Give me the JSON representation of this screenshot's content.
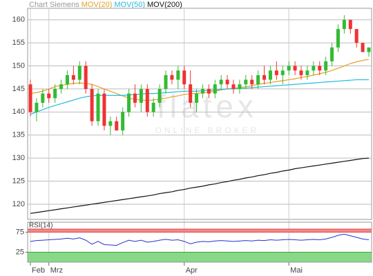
{
  "chart_data": [
    {
      "type": "candlestick",
      "title": "Chart Siemens",
      "categories": [
        "Feb",
        null,
        null,
        "Mrz",
        null,
        null,
        null,
        null,
        null,
        null,
        null,
        null,
        null,
        null,
        null,
        null,
        null,
        null,
        null,
        null,
        null,
        null,
        null,
        null,
        null,
        "Apr",
        null,
        null,
        null,
        null,
        null,
        null,
        null,
        null,
        null,
        null,
        null,
        null,
        null,
        null,
        null,
        null,
        "Mai",
        null,
        null,
        null,
        null,
        null,
        null,
        null,
        null,
        null,
        null,
        null,
        null,
        null
      ],
      "open": [
        146,
        140,
        142,
        144,
        143,
        145,
        146,
        148,
        147,
        150,
        145,
        138,
        144,
        137,
        138,
        136,
        140,
        144,
        142,
        145,
        140,
        142,
        145,
        148,
        147,
        149,
        146,
        142,
        144,
        145,
        144,
        146,
        147,
        146,
        145,
        146,
        147,
        146,
        148,
        147,
        149,
        148,
        149,
        150,
        149,
        148,
        149,
        150,
        149,
        151,
        154,
        158,
        160,
        158,
        155,
        153
      ],
      "high": [
        147,
        143,
        145,
        145,
        146,
        147,
        149,
        150,
        151,
        151,
        146,
        145,
        145,
        139,
        139,
        141,
        145,
        146,
        146,
        146,
        143,
        146,
        149,
        149,
        150,
        150,
        149,
        145,
        146,
        146,
        147,
        148,
        148,
        147,
        147,
        148,
        148,
        149,
        150,
        150,
        151,
        150,
        151,
        151,
        150,
        150,
        151,
        151,
        152,
        155,
        159,
        161,
        160,
        158,
        155,
        154
      ],
      "low": [
        139,
        138,
        141,
        142,
        142,
        144,
        145,
        146,
        146,
        144,
        137,
        137,
        136,
        135,
        136,
        135,
        139,
        141,
        140,
        139,
        139,
        141,
        144,
        146,
        145,
        145,
        141,
        140,
        143,
        143,
        143,
        145,
        145,
        144,
        144,
        145,
        145,
        145,
        146,
        146,
        147,
        146,
        148,
        148,
        147,
        147,
        148,
        148,
        148,
        150,
        153,
        157,
        157,
        154,
        153,
        152
      ],
      "close": [
        140,
        142,
        144,
        143,
        145,
        146,
        148,
        147,
        150,
        145,
        138,
        144,
        137,
        138,
        136,
        140,
        144,
        142,
        145,
        140,
        142,
        145,
        148,
        147,
        149,
        146,
        142,
        144,
        145,
        144,
        146,
        147,
        146,
        145,
        146,
        147,
        146,
        148,
        147,
        149,
        148,
        149,
        150,
        149,
        148,
        149,
        150,
        149,
        151,
        154,
        158,
        160,
        158,
        155,
        153,
        154
      ],
      "up_color": "#33bb33",
      "down_color": "#ee3333",
      "series": [
        {
          "name": "MOV(20)",
          "color": "#e8a020",
          "values": [
            144,
            144.2,
            144.5,
            145,
            145.5,
            145.8,
            146,
            146.2,
            146.3,
            146.2,
            146,
            145.5,
            145,
            144.5,
            144,
            143.5,
            143,
            142.8,
            142.6,
            142.5,
            142.6,
            142.8,
            143,
            143.3,
            143.5,
            143.8,
            144,
            144,
            144.2,
            144.3,
            144.5,
            144.8,
            145,
            145.2,
            145.3,
            145.5,
            145.7,
            146,
            146.2,
            146.4,
            146.6,
            146.8,
            147,
            147.2,
            147.5,
            147.7,
            148,
            148.3,
            148.6,
            149,
            149.5,
            150,
            150.5,
            150.9,
            151.2,
            151.4
          ]
        },
        {
          "name": "MOV(50)",
          "color": "#22bbdd",
          "values": [
            139.5,
            140,
            140.5,
            141,
            141.4,
            141.8,
            142.2,
            142.6,
            143,
            143.3,
            143.5,
            143.6,
            143.6,
            143.6,
            143.6,
            143.6,
            143.7,
            143.8,
            143.9,
            144,
            144,
            144.1,
            144.2,
            144.3,
            144.4,
            144.5,
            144.5,
            144.5,
            144.6,
            144.7,
            144.8,
            144.9,
            145,
            145,
            145.1,
            145.2,
            145.3,
            145.4,
            145.5,
            145.6,
            145.7,
            145.8,
            145.9,
            146,
            146.1,
            146.2,
            146.3,
            146.4,
            146.5,
            146.6,
            146.7,
            146.8,
            146.9,
            147,
            147,
            147
          ]
        },
        {
          "name": "MOV(200)",
          "color": "#111111",
          "values": [
            118,
            118.2,
            118.4,
            118.6,
            118.8,
            119,
            119.2,
            119.4,
            119.6,
            119.8,
            120,
            120.2,
            120.4,
            120.6,
            120.8,
            121,
            121.2,
            121.4,
            121.6,
            121.8,
            122,
            122.3,
            122.5,
            122.7,
            123,
            123.2,
            123.5,
            123.7,
            123.9,
            124.2,
            124.4,
            124.7,
            124.9,
            125.2,
            125.4,
            125.7,
            125.9,
            126.2,
            126.4,
            126.7,
            126.9,
            127.2,
            127.4,
            127.7,
            127.9,
            128.1,
            128.3,
            128.5,
            128.7,
            128.9,
            129.1,
            129.3,
            129.5,
            129.7,
            129.9,
            130
          ]
        }
      ],
      "ylim": [
        116.7,
        162.5
      ],
      "yticks": [
        120,
        125,
        130,
        135,
        140,
        145,
        150,
        155,
        160
      ],
      "grid": true
    },
    {
      "type": "line",
      "title": "RSI(14)",
      "color": "#2233cc",
      "values": [
        52,
        54,
        55,
        56,
        57,
        58,
        60,
        58,
        61,
        55,
        45,
        52,
        44,
        43,
        42,
        49,
        55,
        52,
        55,
        50,
        52,
        55,
        57,
        55,
        56,
        52,
        46,
        50,
        52,
        51,
        53,
        54,
        53,
        52,
        53,
        54,
        53,
        55,
        54,
        56,
        55,
        56,
        57,
        56,
        55,
        56,
        57,
        56,
        58,
        62,
        67,
        70,
        66,
        62,
        58,
        56
      ],
      "ylim": [
        0,
        100
      ],
      "yticks": [
        25,
        75
      ],
      "upper_color": "#f28a8a",
      "lower_color": "#88d888"
    }
  ],
  "watermark": {
    "logo": "flatex",
    "tagline": "ONLINE BROKER"
  }
}
